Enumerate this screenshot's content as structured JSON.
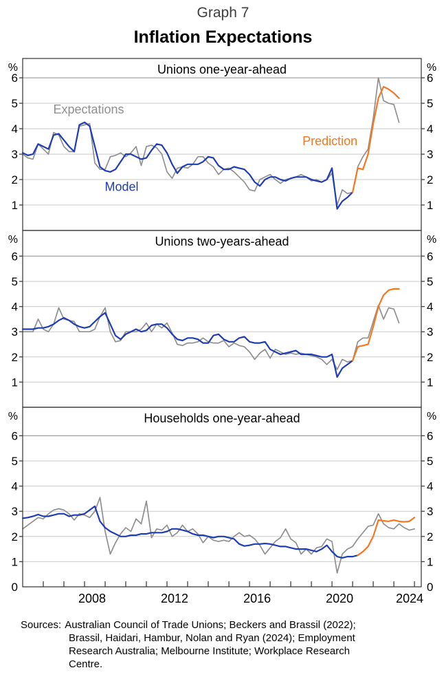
{
  "header": {
    "graph_number": "Graph 7",
    "title": "Inflation Expectations"
  },
  "colors": {
    "gray": "#8f8f8f",
    "blue": "#1e3cb4",
    "orange": "#f8761f",
    "grid": "#c9c9c9",
    "grid_top": "#8c8c8c",
    "frame": "#3f3f3f"
  },
  "axes": {
    "unit": "%",
    "y_ticks": [
      1,
      2,
      3,
      4,
      5,
      6
    ],
    "x_label_years": [
      2008,
      2012,
      2016,
      2020,
      2024
    ],
    "x_minor_tick_start": 2006,
    "x_minor_tick_end": 2024,
    "xlim": [
      2005,
      2024.33
    ]
  },
  "chart_data": [
    {
      "type": "line",
      "title": "Unions one-year-ahead",
      "ylabel": "%",
      "ylim": [
        0,
        6.76
      ],
      "show_zero_label": false,
      "series": [
        {
          "name": "Expectations",
          "color": "gray",
          "start": 2005.0,
          "step": 0.25,
          "values": [
            3.0,
            2.85,
            2.8,
            3.4,
            3.2,
            3.0,
            3.85,
            3.75,
            3.3,
            3.1,
            3.1,
            4.1,
            4.15,
            4.2,
            2.65,
            2.4,
            2.4,
            2.9,
            2.95,
            3.05,
            2.9,
            3.05,
            3.3,
            2.55,
            3.3,
            3.35,
            3.25,
            3.0,
            2.3,
            2.05,
            2.45,
            2.5,
            2.45,
            2.6,
            2.9,
            2.9,
            2.65,
            2.5,
            2.2,
            2.4,
            2.45,
            2.3,
            2.1,
            1.9,
            1.6,
            1.55,
            2.0,
            2.1,
            2.2,
            2.0,
            1.85,
            2.0,
            2.05,
            2.1,
            2.2,
            2.1,
            1.95,
            2.0,
            1.9,
            2.0,
            2.25,
            1.0,
            1.6,
            1.45,
            1.5,
            2.5,
            2.9,
            3.2,
            4.4,
            6.0,
            5.1,
            5.0,
            4.95,
            4.25
          ]
        },
        {
          "name": "Model",
          "color": "blue",
          "start": 2005.0,
          "step": 0.25,
          "values": [
            3.05,
            2.95,
            3.0,
            3.4,
            3.3,
            3.2,
            3.75,
            3.8,
            3.55,
            3.3,
            3.1,
            4.15,
            4.25,
            4.1,
            3.3,
            2.5,
            2.35,
            2.3,
            2.4,
            2.7,
            3.0,
            3.0,
            2.9,
            2.8,
            2.85,
            3.15,
            3.4,
            3.35,
            3.05,
            2.6,
            2.25,
            2.5,
            2.6,
            2.6,
            2.6,
            2.7,
            2.9,
            2.85,
            2.55,
            2.4,
            2.4,
            2.5,
            2.45,
            2.4,
            2.2,
            1.9,
            1.75,
            2.0,
            2.1,
            2.1,
            2.0,
            1.95,
            2.05,
            2.1,
            2.1,
            2.1,
            2.0,
            1.95,
            1.9,
            2.0,
            2.45,
            0.85,
            1.15,
            1.3,
            1.5
          ]
        },
        {
          "name": "Prediction",
          "color": "orange",
          "start": 2021.0,
          "step": 0.25,
          "values": [
            1.5,
            2.45,
            2.4,
            3.0,
            4.2,
            5.2,
            5.65,
            5.55,
            5.4,
            5.2
          ]
        }
      ],
      "annotations": [
        {
          "text": "Expectations",
          "year": 2008.2,
          "value": 4.6,
          "color": "gray"
        },
        {
          "text": "Model",
          "year": 2009.8,
          "value": 1.55,
          "color": "blue"
        },
        {
          "text": "Prediction",
          "year": 2019.9,
          "value": 3.35,
          "color": "orange"
        }
      ]
    },
    {
      "type": "line",
      "title": "Unions two-years-ahead",
      "ylabel": "%",
      "ylim": [
        0,
        7.02
      ],
      "show_zero_label": false,
      "series": [
        {
          "name": "Expectations",
          "color": "gray",
          "start": 2005.0,
          "step": 0.25,
          "values": [
            3.0,
            3.0,
            3.0,
            3.5,
            3.1,
            3.0,
            3.3,
            3.95,
            3.5,
            3.45,
            3.4,
            3.0,
            3.0,
            3.0,
            3.1,
            3.6,
            3.95,
            3.0,
            2.6,
            2.65,
            3.0,
            3.0,
            3.0,
            3.1,
            3.35,
            3.0,
            3.3,
            3.15,
            3.35,
            2.95,
            2.5,
            2.45,
            2.55,
            2.55,
            2.6,
            2.75,
            2.6,
            2.55,
            2.55,
            2.65,
            2.4,
            2.55,
            2.45,
            2.4,
            2.2,
            1.9,
            2.15,
            2.3,
            1.95,
            2.3,
            2.2,
            2.1,
            2.15,
            2.1,
            2.15,
            2.1,
            2.05,
            2.0,
            1.9,
            1.7,
            1.9,
            1.5,
            1.9,
            1.8,
            1.85,
            2.6,
            2.75,
            2.75,
            3.4,
            4.05,
            3.5,
            3.95,
            3.9,
            3.35
          ]
        },
        {
          "name": "Model",
          "color": "blue",
          "start": 2005.0,
          "step": 0.25,
          "values": [
            3.1,
            3.1,
            3.1,
            3.15,
            3.15,
            3.2,
            3.3,
            3.45,
            3.55,
            3.45,
            3.3,
            3.2,
            3.15,
            3.2,
            3.4,
            3.6,
            3.75,
            3.3,
            2.85,
            2.7,
            2.9,
            3.0,
            3.1,
            3.0,
            3.05,
            3.25,
            3.3,
            3.3,
            3.15,
            2.9,
            2.7,
            2.65,
            2.75,
            2.75,
            2.7,
            2.55,
            2.55,
            2.85,
            2.9,
            2.7,
            2.6,
            2.6,
            2.75,
            2.8,
            2.6,
            2.55,
            2.55,
            2.6,
            2.3,
            2.2,
            2.1,
            2.15,
            2.2,
            2.25,
            2.1,
            2.1,
            2.1,
            2.05,
            2.0,
            2.0,
            2.1,
            1.2,
            1.55,
            1.7,
            1.85
          ]
        },
        {
          "name": "Prediction",
          "color": "orange",
          "start": 2021.0,
          "step": 0.25,
          "values": [
            1.85,
            2.4,
            2.45,
            2.5,
            3.2,
            4.0,
            4.45,
            4.65,
            4.7,
            4.7
          ]
        }
      ],
      "annotations": []
    },
    {
      "type": "line",
      "title": "Households one-year-ahead",
      "ylabel": "%",
      "ylim": [
        0,
        7.13
      ],
      "show_zero_label": true,
      "series": [
        {
          "name": "Expectations",
          "color": "gray",
          "start": 2005.0,
          "step": 0.25,
          "values": [
            2.3,
            2.45,
            2.6,
            2.75,
            2.7,
            2.9,
            3.05,
            3.1,
            3.05,
            2.9,
            2.65,
            2.9,
            2.85,
            2.75,
            3.0,
            3.55,
            2.2,
            1.3,
            1.75,
            2.1,
            2.35,
            2.2,
            2.7,
            2.5,
            3.4,
            1.95,
            2.3,
            2.25,
            2.45,
            2.0,
            2.15,
            2.45,
            2.2,
            2.3,
            2.1,
            1.75,
            2.0,
            1.85,
            1.8,
            1.85,
            1.8,
            2.0,
            2.15,
            2.0,
            2.05,
            1.9,
            1.65,
            1.3,
            1.55,
            1.8,
            1.95,
            2.3,
            1.9,
            1.75,
            1.3,
            1.5,
            1.3,
            1.55,
            1.6,
            1.9,
            1.8,
            0.55,
            1.3,
            1.5,
            1.6,
            1.9,
            2.15,
            2.4,
            2.45,
            2.9,
            2.5,
            2.35,
            2.3,
            2.5,
            2.35,
            2.25,
            2.3
          ]
        },
        {
          "name": "Model",
          "color": "blue",
          "start": 2005.0,
          "step": 0.25,
          "values": [
            2.72,
            2.75,
            2.8,
            2.87,
            2.8,
            2.8,
            2.85,
            2.9,
            2.9,
            2.8,
            2.85,
            2.85,
            2.9,
            3.05,
            3.2,
            2.6,
            2.35,
            2.2,
            2.1,
            2.0,
            2.0,
            2.05,
            2.05,
            2.1,
            2.1,
            2.15,
            2.15,
            2.15,
            2.2,
            2.3,
            2.3,
            2.25,
            2.2,
            2.1,
            2.05,
            2.05,
            2.0,
            1.95,
            2.0,
            2.0,
            1.95,
            1.9,
            1.7,
            1.62,
            1.65,
            1.7,
            1.7,
            1.72,
            1.7,
            1.65,
            1.6,
            1.6,
            1.55,
            1.5,
            1.5,
            1.5,
            1.45,
            1.4,
            1.5,
            1.65,
            1.4,
            1.2,
            1.15,
            1.2,
            1.2,
            1.25
          ]
        },
        {
          "name": "Prediction",
          "color": "orange",
          "start": 2021.25,
          "step": 0.25,
          "values": [
            1.25,
            1.4,
            1.6,
            2.0,
            2.65,
            2.62,
            2.6,
            2.65,
            2.6,
            2.58,
            2.6,
            2.75
          ]
        }
      ],
      "annotations": []
    }
  ],
  "sources": {
    "label": "Sources:",
    "lines": [
      "Australian Council of Trade Unions; Beckers and Brassil (2022);",
      "Brassil, Haidari, Hambur, Nolan and Ryan (2024); Employment",
      "Research Australia; Melbourne Institute; Workplace Research",
      "Centre."
    ]
  }
}
